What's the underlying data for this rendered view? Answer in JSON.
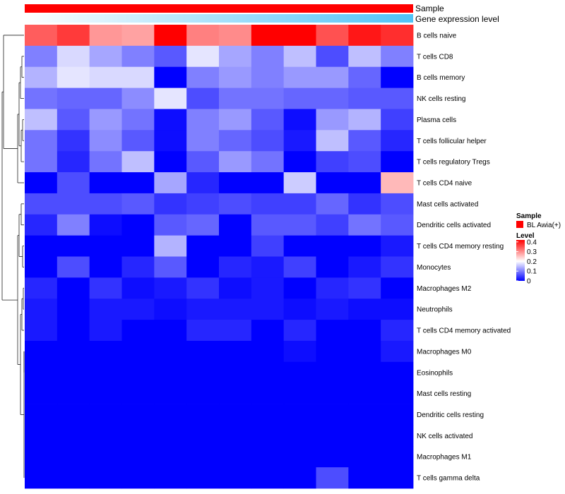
{
  "chart_data": {
    "type": "heatmap",
    "title": "",
    "annotations": [
      {
        "name": "Sample",
        "label": "Sample",
        "color": "#ff0000"
      },
      {
        "name": "Gene expression level",
        "label": "Gene expression level",
        "gradient": [
          "#ffffff",
          "#4fc3f7"
        ]
      }
    ],
    "columns": 12,
    "rows": [
      "B cells naive",
      "T cells CD8",
      "B cells memory",
      "NK cells resting",
      "Plasma cells",
      "T cells follicular helper",
      "T cells regulatory  Tregs",
      "T cells CD4 naive",
      "Mast cells activated",
      "Dendritic cells activated",
      "T cells CD4 memory resting",
      "Monocytes",
      "Macrophages M2",
      "Neutrophils",
      "T cells CD4 memory activated",
      "Macrophages M0",
      "Eosinophils",
      "Mast cells resting",
      "Dendritic cells resting",
      "NK cells activated",
      "Macrophages M1",
      "T cells gamma delta"
    ],
    "values": [
      [
        0.34,
        0.37,
        0.29,
        0.28,
        0.42,
        0.31,
        0.3,
        0.42,
        0.42,
        0.35,
        0.4,
        0.38
      ],
      [
        0.1,
        0.17,
        0.13,
        0.1,
        0.07,
        0.18,
        0.13,
        0.1,
        0.15,
        0.06,
        0.15,
        0.1
      ],
      [
        0.14,
        0.18,
        0.17,
        0.17,
        0.0,
        0.1,
        0.12,
        0.1,
        0.12,
        0.12,
        0.08,
        0.0
      ],
      [
        0.09,
        0.08,
        0.08,
        0.11,
        0.18,
        0.06,
        0.09,
        0.09,
        0.08,
        0.08,
        0.07,
        0.07
      ],
      [
        0.15,
        0.07,
        0.12,
        0.09,
        0.01,
        0.1,
        0.12,
        0.07,
        0.01,
        0.12,
        0.14,
        0.05
      ],
      [
        0.09,
        0.04,
        0.11,
        0.07,
        0.01,
        0.1,
        0.08,
        0.06,
        0.02,
        0.15,
        0.07,
        0.03
      ],
      [
        0.09,
        0.03,
        0.09,
        0.15,
        0.0,
        0.07,
        0.12,
        0.09,
        0.0,
        0.05,
        0.06,
        0.0
      ],
      [
        0.0,
        0.06,
        0.0,
        0.0,
        0.13,
        0.03,
        0.0,
        0.0,
        0.16,
        0.0,
        0.0,
        0.26
      ],
      [
        0.06,
        0.06,
        0.06,
        0.07,
        0.04,
        0.05,
        0.06,
        0.05,
        0.05,
        0.08,
        0.04,
        0.06
      ],
      [
        0.03,
        0.1,
        0.01,
        0.0,
        0.07,
        0.08,
        0.0,
        0.07,
        0.07,
        0.05,
        0.09,
        0.07
      ],
      [
        0.0,
        0.0,
        0.0,
        0.0,
        0.14,
        0.0,
        0.0,
        0.05,
        0.0,
        0.0,
        0.0,
        0.02
      ],
      [
        0.0,
        0.06,
        0.0,
        0.03,
        0.07,
        0.0,
        0.03,
        0.02,
        0.05,
        0.0,
        0.02,
        0.04
      ],
      [
        0.03,
        0.0,
        0.04,
        0.01,
        0.02,
        0.04,
        0.01,
        0.02,
        0.0,
        0.03,
        0.04,
        0.0
      ],
      [
        0.02,
        0.0,
        0.02,
        0.02,
        0.01,
        0.02,
        0.02,
        0.02,
        0.01,
        0.02,
        0.01,
        0.01
      ],
      [
        0.02,
        0.0,
        0.02,
        0.0,
        0.0,
        0.03,
        0.03,
        0.0,
        0.03,
        0.0,
        0.0,
        0.03
      ],
      [
        0.0,
        0.0,
        0.0,
        0.0,
        0.0,
        0.0,
        0.0,
        0.0,
        0.01,
        0.0,
        0.0,
        0.02
      ],
      [
        0.0,
        0.0,
        0.0,
        0.0,
        0.0,
        0.0,
        0.0,
        0.0,
        0.0,
        0.0,
        0.0,
        0.0
      ],
      [
        0.0,
        0.0,
        0.0,
        0.0,
        0.0,
        0.0,
        0.0,
        0.0,
        0.0,
        0.0,
        0.0,
        0.0
      ],
      [
        0.0,
        0.0,
        0.0,
        0.0,
        0.0,
        0.0,
        0.0,
        0.0,
        0.0,
        0.0,
        0.0,
        0.0
      ],
      [
        0.0,
        0.0,
        0.0,
        0.0,
        0.0,
        0.0,
        0.0,
        0.0,
        0.0,
        0.0,
        0.0,
        0.0
      ],
      [
        0.0,
        0.0,
        0.0,
        0.0,
        0.0,
        0.0,
        0.0,
        0.0,
        0.0,
        0.0,
        0.0,
        0.0
      ],
      [
        0.0,
        0.0,
        0.0,
        0.0,
        0.0,
        0.0,
        0.0,
        0.0,
        0.0,
        0.06,
        0.0,
        0.0
      ]
    ],
    "color_scale": {
      "min": 0,
      "mid": 0.2,
      "max": 0.42,
      "low": "#0000ff",
      "middle": "#ffffff",
      "high": "#ff0000"
    },
    "legend": {
      "placement": "right",
      "sample": {
        "title": "Sample",
        "entry": "BL Awia(+)",
        "color": "#ff0000"
      },
      "level": {
        "title": "Level",
        "ticks": [
          "0.4",
          "0.3",
          "0.2",
          "0.1",
          "0"
        ],
        "tick_values": [
          0.4,
          0.3,
          0.2,
          0.1,
          0
        ]
      }
    },
    "dendrogram": "rows"
  }
}
